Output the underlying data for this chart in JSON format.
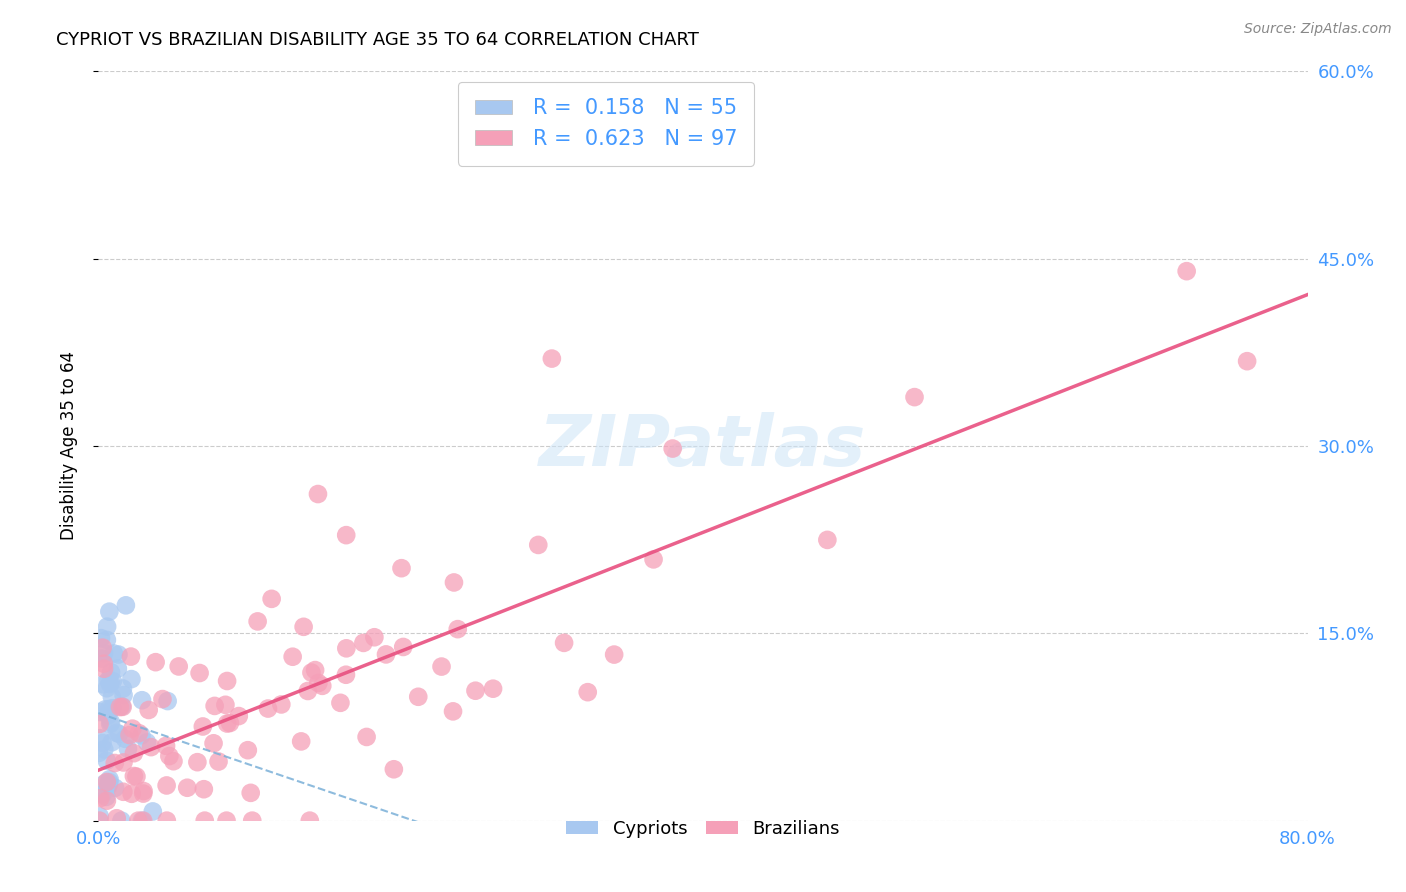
{
  "title": "CYPRIOT VS BRAZILIAN DISABILITY AGE 35 TO 64 CORRELATION CHART",
  "source": "Source: ZipAtlas.com",
  "ylabel": "Disability Age 35 to 64",
  "watermark": "ZIPatlas",
  "cypriot_R": 0.158,
  "cypriot_N": 55,
  "brazilian_R": 0.623,
  "brazilian_N": 97,
  "cypriot_color": "#a8c8f0",
  "brazilian_color": "#f5a0b8",
  "cypriot_line_color": "#7ab0d8",
  "brazilian_line_color": "#e85080",
  "axis_label_color": "#4499ff",
  "background_color": "#ffffff",
  "grid_color": "#cccccc",
  "xlim": [
    0.0,
    0.8
  ],
  "ylim": [
    0.0,
    0.6
  ],
  "xticks": [
    0.0,
    0.1,
    0.2,
    0.3,
    0.4,
    0.5,
    0.6,
    0.7,
    0.8
  ],
  "yticks": [
    0.0,
    0.15,
    0.3,
    0.45,
    0.6
  ],
  "xtick_labels": [
    "0.0%",
    "",
    "",
    "",
    "",
    "",
    "",
    "",
    "80.0%"
  ],
  "ytick_labels_right": [
    "",
    "15.0%",
    "30.0%",
    "45.0%",
    "60.0%"
  ],
  "legend_labels": [
    "R =  0.158   N = 55",
    "R =  0.623   N = 97"
  ],
  "bottom_legend_labels": [
    "Cypriots",
    "Brazilians"
  ]
}
